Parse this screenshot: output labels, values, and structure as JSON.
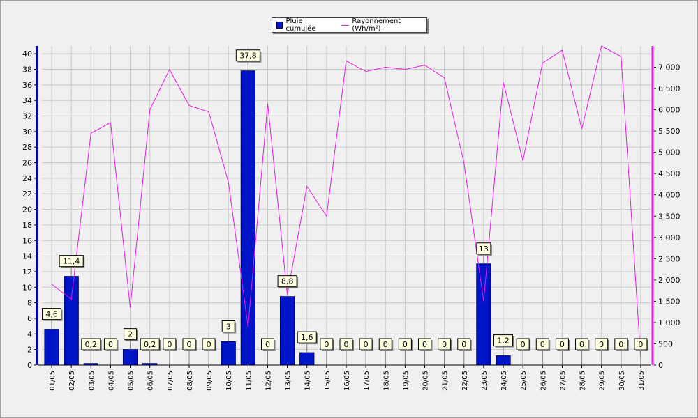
{
  "chart_data": {
    "type": "bar",
    "categories": [
      "01/05",
      "02/05",
      "03/05",
      "04/05",
      "05/05",
      "06/05",
      "07/05",
      "08/05",
      "09/05",
      "10/05",
      "11/05",
      "12/05",
      "13/05",
      "14/05",
      "15/05",
      "16/05",
      "17/05",
      "18/05",
      "19/05",
      "20/05",
      "21/05",
      "22/05",
      "23/05",
      "24/05",
      "25/05",
      "26/05",
      "27/05",
      "28/05",
      "29/05",
      "30/05",
      "31/05"
    ],
    "series": [
      {
        "name": "Pluie cumulée",
        "type": "bar",
        "axis": "left",
        "color": "#0014c8",
        "values": [
          4.6,
          11.4,
          0.2,
          0,
          2,
          0.2,
          0,
          0,
          0,
          3,
          37.8,
          0,
          8.8,
          1.6,
          0,
          0,
          0,
          0,
          0,
          0,
          0,
          0,
          13,
          1.2,
          0,
          0,
          0,
          0,
          0,
          0,
          0
        ],
        "labels": [
          "4,6",
          "11,4",
          "0,2",
          "0",
          "2",
          "0,2",
          "0",
          "0",
          "0",
          "3",
          "37,8",
          "0",
          "8,8",
          "1,6",
          "0",
          "0",
          "0",
          "0",
          "0",
          "0",
          "0",
          "0",
          "13",
          "1,2",
          "0",
          "0",
          "0",
          "0",
          "0",
          "0",
          "0"
        ]
      },
      {
        "name": "Rayonnement (Wh/m²)",
        "type": "line",
        "axis": "right",
        "color": "#e619e6",
        "values": [
          1900,
          1550,
          5450,
          5700,
          1350,
          6000,
          6950,
          6100,
          5950,
          4300,
          900,
          6150,
          1650,
          4200,
          3500,
          7150,
          6900,
          7000,
          6950,
          7050,
          6750,
          4750,
          1500,
          6650,
          4800,
          7100,
          7400,
          5550,
          7500,
          7250,
          150
        ]
      }
    ],
    "y_left": {
      "min": 0,
      "max": 41,
      "ticks": [
        "0",
        "2",
        "4",
        "6",
        "8",
        "10",
        "12",
        "14",
        "16",
        "18",
        "20",
        "22",
        "24",
        "26",
        "28",
        "30",
        "32",
        "34",
        "36",
        "38",
        "40"
      ],
      "color": "#0000c8"
    },
    "y_right": {
      "min": 0,
      "max": 7500,
      "ticks": [
        "0",
        "500",
        "1 000",
        "1 500",
        "2 000",
        "2 500",
        "3 000",
        "3 500",
        "4 000",
        "4 500",
        "5 000",
        "5 500",
        "6 000",
        "6 500",
        "7 000"
      ],
      "color": "#e619e6"
    },
    "grid": true,
    "legend_position": "top-center"
  }
}
